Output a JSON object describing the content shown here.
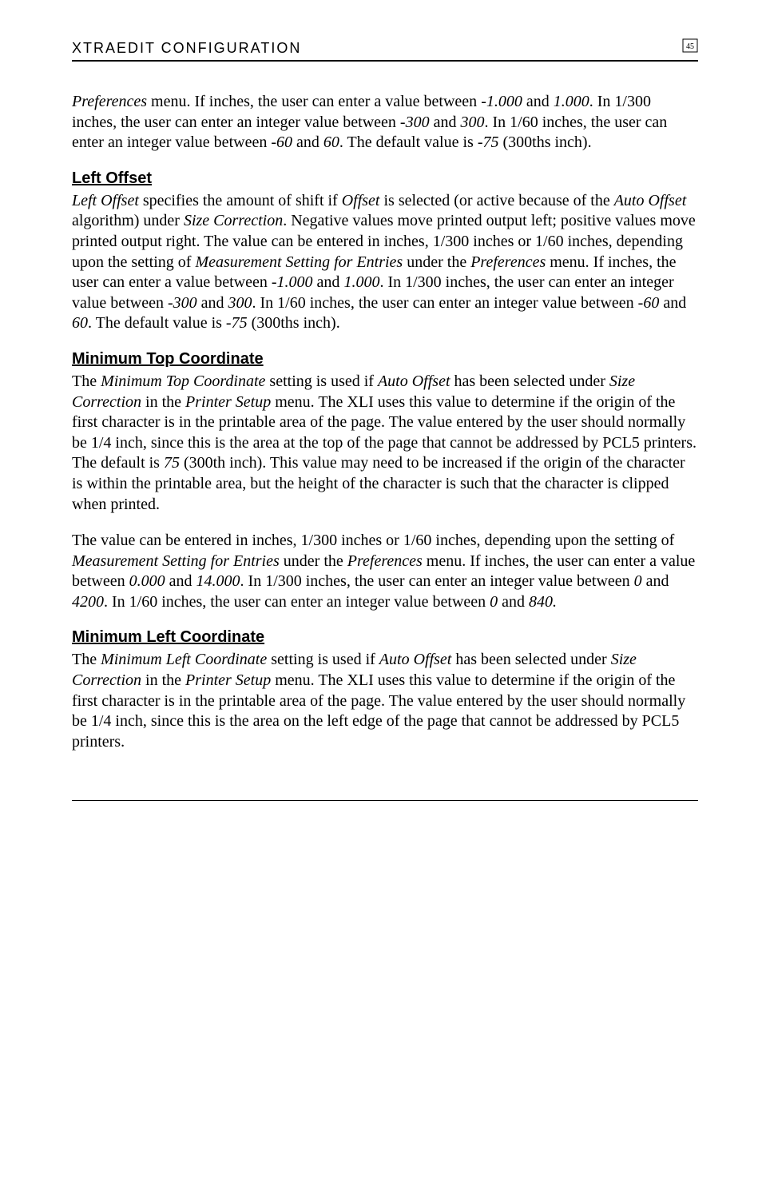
{
  "header": {
    "running_head": "XTRAEDIT CONFIGURATION",
    "page_icon": "⌂"
  },
  "intro_paragraph": {
    "segments": [
      {
        "t": "Preferences",
        "i": true
      },
      {
        "t": " menu. If inches, the user can enter a value between "
      },
      {
        "t": "-1.000",
        "i": true
      },
      {
        "t": " and "
      },
      {
        "t": "1.000",
        "i": true
      },
      {
        "t": ". In 1/300 inches, the user can enter an integer value between "
      },
      {
        "t": "-300",
        "i": true
      },
      {
        "t": " and "
      },
      {
        "t": "300",
        "i": true
      },
      {
        "t": ". In 1/60 inches, the user can enter an integer value between "
      },
      {
        "t": "-60",
        "i": true
      },
      {
        "t": " and "
      },
      {
        "t": "60",
        "i": true
      },
      {
        "t": ". The default value is "
      },
      {
        "t": "-75",
        "i": true
      },
      {
        "t": " (300ths inch)."
      }
    ]
  },
  "sections": [
    {
      "heading": "Left Offset",
      "paragraphs": [
        {
          "segments": [
            {
              "t": "Left Offset",
              "i": true
            },
            {
              "t": " specifies the amount of shift if "
            },
            {
              "t": "Offset",
              "i": true
            },
            {
              "t": " is selected (or active because of the "
            },
            {
              "t": "Auto Offset",
              "i": true
            },
            {
              "t": " algorithm) under "
            },
            {
              "t": "Size Correction",
              "i": true
            },
            {
              "t": ". Negative values move printed output left; positive values move printed output right. The value can be entered in inches, 1/300 inches or 1/60 inches, depending upon the setting of "
            },
            {
              "t": "Measurement Setting for Entries",
              "i": true
            },
            {
              "t": " under the "
            },
            {
              "t": "Preferences",
              "i": true
            },
            {
              "t": " menu. If inches, the user can enter a value between "
            },
            {
              "t": "-1.000",
              "i": true
            },
            {
              "t": " and "
            },
            {
              "t": "1.000",
              "i": true
            },
            {
              "t": ". In 1/300 inches, the user can enter an integer value between "
            },
            {
              "t": "-300",
              "i": true
            },
            {
              "t": " and "
            },
            {
              "t": "300",
              "i": true
            },
            {
              "t": ". In 1/60 inches, the user can enter an integer value between "
            },
            {
              "t": "-60",
              "i": true
            },
            {
              "t": " and "
            },
            {
              "t": "60",
              "i": true
            },
            {
              "t": ". The default value is "
            },
            {
              "t": "-75",
              "i": true
            },
            {
              "t": " (300ths inch)."
            }
          ]
        }
      ]
    },
    {
      "heading": "Minimum Top Coordinate",
      "paragraphs": [
        {
          "segments": [
            {
              "t": "The "
            },
            {
              "t": "Minimum Top Coordinate",
              "i": true
            },
            {
              "t": " setting is used if "
            },
            {
              "t": "Auto Offset",
              "i": true
            },
            {
              "t": " has been selected under "
            },
            {
              "t": "Size Correction",
              "i": true
            },
            {
              "t": " in the "
            },
            {
              "t": "Printer Setup",
              "i": true
            },
            {
              "t": " menu. The XLI uses this value to determine if the origin of the first character is in the printable area of the page. The value entered by the user should normally be 1/4 inch, since this is the area at the top of the page that cannot be addressed by PCL5 printers. The default is "
            },
            {
              "t": "75",
              "i": true
            },
            {
              "t": " (300th inch). This value may need to be increased if the origin of the character is within the printable area, but the height of the character is such that the character is clipped when printed."
            }
          ]
        },
        {
          "segments": [
            {
              "t": "The value can be entered in inches, 1/300 inches or 1/60 inches, depending upon the setting of "
            },
            {
              "t": "Measurement Setting for Entries",
              "i": true
            },
            {
              "t": " under the "
            },
            {
              "t": "Preferences",
              "i": true
            },
            {
              "t": " menu. If inches, the user can enter a value between "
            },
            {
              "t": "0.000",
              "i": true
            },
            {
              "t": " and "
            },
            {
              "t": "14.000",
              "i": true
            },
            {
              "t": ". In 1/300 inches, the user can enter an integer value between "
            },
            {
              "t": "0",
              "i": true
            },
            {
              "t": " and "
            },
            {
              "t": "4200",
              "i": true
            },
            {
              "t": ". In 1/60 inches, the user can enter an integer value between "
            },
            {
              "t": "0",
              "i": true
            },
            {
              "t": " and "
            },
            {
              "t": "840.",
              "i": true
            }
          ]
        }
      ]
    },
    {
      "heading": "Minimum Left Coordinate",
      "paragraphs": [
        {
          "segments": [
            {
              "t": "The "
            },
            {
              "t": "Minimum Left Coordinate",
              "i": true
            },
            {
              "t": " setting is used if "
            },
            {
              "t": "Auto Offset",
              "i": true
            },
            {
              "t": " has been selected under "
            },
            {
              "t": "Size Correction",
              "i": true
            },
            {
              "t": " in the "
            },
            {
              "t": "Printer Setup",
              "i": true
            },
            {
              "t": " menu. The XLI uses this value to determine if the origin of the first character is in the printable area of the page. The value entered by the user should normally be 1/4 inch, since this is the area on the left edge of the page that cannot be addressed by PCL5 printers."
            }
          ]
        }
      ]
    }
  ]
}
